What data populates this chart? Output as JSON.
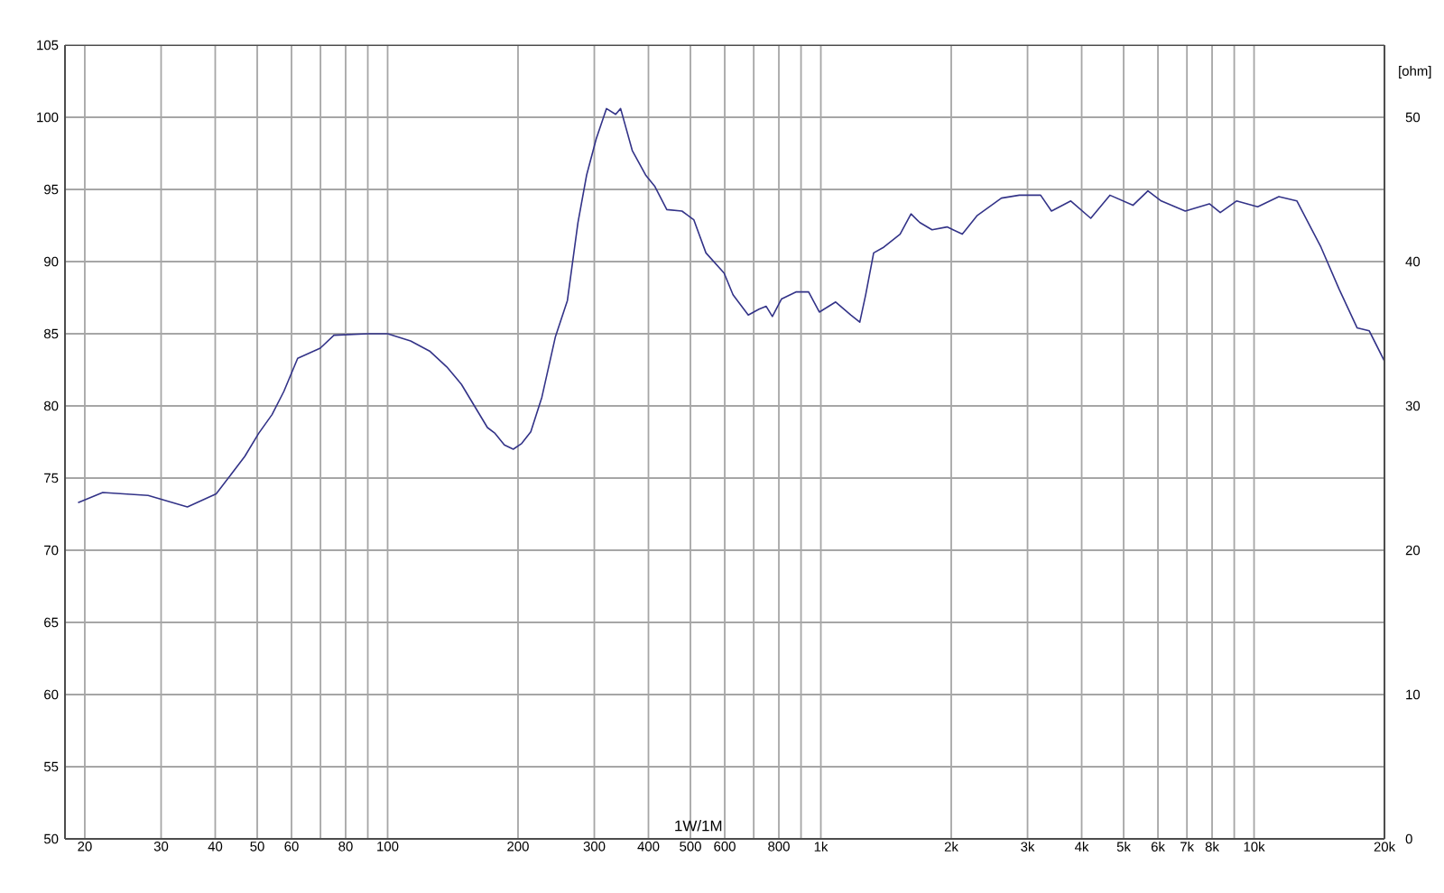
{
  "chart_data": {
    "type": "line",
    "xlabel": "1W/1M",
    "y2label": "[ohm]",
    "log": "x",
    "grid": true,
    "marker": "none",
    "line_style": "solid",
    "xlim": [
      18,
      20000
    ],
    "ylim": [
      50,
      105
    ],
    "y2lim": [
      0,
      55
    ],
    "xticks": [
      20,
      30,
      40,
      50,
      60,
      {
        "value": 70,
        "label": null
      },
      80,
      {
        "value": 90,
        "label": null
      },
      100,
      200,
      300,
      400,
      500,
      600,
      {
        "value": 700,
        "label": null
      },
      800,
      {
        "value": 900,
        "label": null
      },
      {
        "value": 1000,
        "label": "1k"
      },
      {
        "value": 2000,
        "label": "2k"
      },
      {
        "value": 3000,
        "label": "3k"
      },
      {
        "value": 4000,
        "label": "4k"
      },
      {
        "value": 5000,
        "label": "5k"
      },
      {
        "value": 6000,
        "label": "6k"
      },
      {
        "value": 7000,
        "label": "7k"
      },
      {
        "value": 8000,
        "label": "8k"
      },
      {
        "value": 9000,
        "label": null
      },
      {
        "value": 10000,
        "label": "10k"
      },
      {
        "value": 20000,
        "label": "20k"
      }
    ],
    "yticks": [
      50,
      55,
      60,
      65,
      70,
      75,
      80,
      85,
      90,
      95,
      100,
      105
    ],
    "y2ticks": [
      0,
      10,
      20,
      30,
      40,
      50
    ],
    "series": [
      {
        "color": "#333388",
        "x": [
          19.3,
          22.0,
          28.0,
          34.5,
          40.2,
          46.8,
          50.4,
          54.1,
          57.6,
          62.0,
          69.9,
          75.2,
          90.2,
          100,
          113,
          125,
          137,
          148,
          170,
          177,
          186,
          195,
          204,
          214,
          227,
          244,
          260,
          275,
          288,
          303,
          320,
          336,
          345,
          367,
          394,
          414,
          441,
          478,
          509,
          543,
          598,
          627,
          680,
          720,
          748,
          773,
          811,
          878,
          937,
          992,
          1082,
          1172,
          1230,
          1269,
          1324,
          1398,
          1524,
          1615,
          1693,
          1806,
          1956,
          2121,
          2297,
          2611,
          2873,
          3216,
          3407,
          3776,
          4198,
          4648,
          5253,
          5688,
          6107,
          6938,
          7887,
          8356,
          9110,
          10194,
          11407,
          12560,
          14270,
          15710,
          17300,
          18450,
          20000
        ],
        "values": [
          73.3,
          74.0,
          73.8,
          73.0,
          73.9,
          76.5,
          78.1,
          79.4,
          81.0,
          83.3,
          84.0,
          84.9,
          85.0,
          85.0,
          84.5,
          83.8,
          82.7,
          81.5,
          78.5,
          78.1,
          77.3,
          77.0,
          77.4,
          78.2,
          80.6,
          84.8,
          87.3,
          92.7,
          96.0,
          98.5,
          100.6,
          100.2,
          100.6,
          97.7,
          96.0,
          95.2,
          93.6,
          93.5,
          92.9,
          90.6,
          89.2,
          87.7,
          86.3,
          86.7,
          86.9,
          86.2,
          87.4,
          87.9,
          87.9,
          86.5,
          87.2,
          86.3,
          85.8,
          87.7,
          90.6,
          91.0,
          91.9,
          93.3,
          92.7,
          92.2,
          92.4,
          91.9,
          93.2,
          94.4,
          94.6,
          94.6,
          93.5,
          94.2,
          93.0,
          94.6,
          93.9,
          94.9,
          94.2,
          93.5,
          94.0,
          93.4,
          94.2,
          93.8,
          94.5,
          94.2,
          91.0,
          88.1,
          85.4,
          85.2,
          83.1
        ]
      }
    ]
  }
}
